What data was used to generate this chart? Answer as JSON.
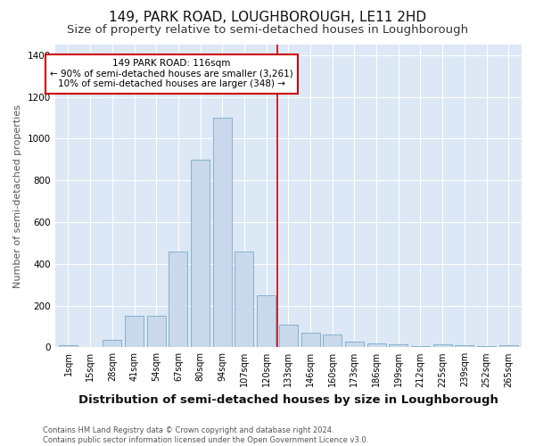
{
  "title": "149, PARK ROAD, LOUGHBOROUGH, LE11 2HD",
  "subtitle": "Size of property relative to semi-detached houses in Loughborough",
  "xlabel": "Distribution of semi-detached houses by size in Loughborough",
  "ylabel": "Number of semi-detached properties",
  "footer_line1": "Contains HM Land Registry data © Crown copyright and database right 2024.",
  "footer_line2": "Contains public sector information licensed under the Open Government Licence v3.0.",
  "bar_labels": [
    "1sqm",
    "15sqm",
    "28sqm",
    "41sqm",
    "54sqm",
    "67sqm",
    "80sqm",
    "94sqm",
    "107sqm",
    "120sqm",
    "133sqm",
    "146sqm",
    "160sqm",
    "173sqm",
    "186sqm",
    "199sqm",
    "212sqm",
    "225sqm",
    "239sqm",
    "252sqm",
    "265sqm"
  ],
  "bar_values": [
    10,
    0,
    35,
    150,
    150,
    460,
    900,
    1100,
    460,
    250,
    110,
    70,
    60,
    28,
    20,
    15,
    5,
    15,
    10,
    5,
    10
  ],
  "bar_color": "#c9d9eb",
  "bar_edgecolor": "#7aaac8",
  "vline_x_index": 9.5,
  "vline_color": "#cc0000",
  "annotation_text": "149 PARK ROAD: 116sqm\n← 90% of semi-detached houses are smaller (3,261)\n10% of semi-detached houses are larger (348) →",
  "annotation_box_color": "#cc0000",
  "ylim": [
    0,
    1450
  ],
  "yticks": [
    0,
    200,
    400,
    600,
    800,
    1000,
    1200,
    1400
  ],
  "bg_color": "#dce8f5",
  "grid_color": "#ffffff",
  "fig_bg_color": "#ffffff",
  "title_fontsize": 11,
  "subtitle_fontsize": 9.5,
  "xlabel_fontsize": 9,
  "ylabel_fontsize": 8,
  "tick_fontsize": 7,
  "footer_fontsize": 6,
  "annot_fontsize": 7.5
}
